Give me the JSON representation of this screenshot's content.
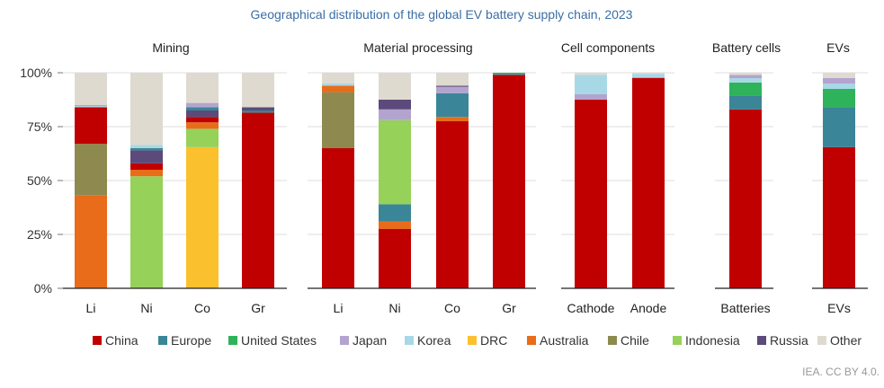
{
  "chart_data": {
    "type": "bar",
    "stacked": true,
    "title": "Geographical distribution of the global EV battery supply chain, 2023",
    "ylim": [
      0,
      100
    ],
    "yticks": [
      "0%",
      "25%",
      "50%",
      "75%",
      "100%"
    ],
    "series": [
      {
        "name": "China",
        "color": "#c00000"
      },
      {
        "name": "Europe",
        "color": "#3a8597"
      },
      {
        "name": "United States",
        "color": "#2eb35a"
      },
      {
        "name": "Japan",
        "color": "#b3a4cf"
      },
      {
        "name": "Korea",
        "color": "#a8d8e6"
      },
      {
        "name": "DRC",
        "color": "#fbc02d"
      },
      {
        "name": "Australia",
        "color": "#e86c1a"
      },
      {
        "name": "Chile",
        "color": "#8e8a4f"
      },
      {
        "name": "Indonesia",
        "color": "#96d15a"
      },
      {
        "name": "Russia",
        "color": "#5b4a7a"
      },
      {
        "name": "Other",
        "color": "#dedad0"
      }
    ],
    "panels": [
      {
        "name": "Mining",
        "bars": [
          {
            "label": "Li",
            "segments": [
              {
                "series": "Australia",
                "value": 43
              },
              {
                "series": "Chile",
                "value": 24
              },
              {
                "series": "China",
                "value": 17
              },
              {
                "series": "Korea",
                "value": 0.5
              },
              {
                "series": "Japan",
                "value": 0.5
              },
              {
                "series": "Other",
                "value": 15
              }
            ]
          },
          {
            "label": "Ni",
            "segments": [
              {
                "series": "Indonesia",
                "value": 52
              },
              {
                "series": "Australia",
                "value": 3
              },
              {
                "series": "China",
                "value": 3
              },
              {
                "series": "Russia",
                "value": 6
              },
              {
                "series": "Europe",
                "value": 1
              },
              {
                "series": "Korea",
                "value": 1.5
              },
              {
                "series": "Other",
                "value": 33.5
              }
            ]
          },
          {
            "label": "Co",
            "segments": [
              {
                "series": "DRC",
                "value": 65.5
              },
              {
                "series": "Indonesia",
                "value": 8.5
              },
              {
                "series": "Australia",
                "value": 3
              },
              {
                "series": "China",
                "value": 2.5
              },
              {
                "series": "Russia",
                "value": 3
              },
              {
                "series": "Europe",
                "value": 1.5
              },
              {
                "series": "Japan",
                "value": 2
              },
              {
                "series": "Other",
                "value": 14
              }
            ]
          },
          {
            "label": "Gr",
            "segments": [
              {
                "series": "China",
                "value": 81.5
              },
              {
                "series": "Europe",
                "value": 1
              },
              {
                "series": "Russia",
                "value": 1.5
              },
              {
                "series": "Other",
                "value": 16
              }
            ]
          }
        ]
      },
      {
        "name": "Material processing",
        "bars": [
          {
            "label": "Li",
            "segments": [
              {
                "series": "China",
                "value": 65
              },
              {
                "series": "Chile",
                "value": 26
              },
              {
                "series": "Australia",
                "value": 3
              },
              {
                "series": "Korea",
                "value": 1
              },
              {
                "series": "Other",
                "value": 5
              }
            ]
          },
          {
            "label": "Ni",
            "segments": [
              {
                "series": "China",
                "value": 27.5
              },
              {
                "series": "Australia",
                "value": 3.5
              },
              {
                "series": "Europe",
                "value": 8
              },
              {
                "series": "Indonesia",
                "value": 39
              },
              {
                "series": "Japan",
                "value": 5
              },
              {
                "series": "Russia",
                "value": 4.5
              },
              {
                "series": "Other",
                "value": 12.5
              }
            ]
          },
          {
            "label": "Co",
            "segments": [
              {
                "series": "China",
                "value": 77.5
              },
              {
                "series": "Australia",
                "value": 2
              },
              {
                "series": "Europe",
                "value": 11
              },
              {
                "series": "Japan",
                "value": 3
              },
              {
                "series": "Russia",
                "value": 0.5
              },
              {
                "series": "Other",
                "value": 6
              }
            ]
          },
          {
            "label": "Gr",
            "segments": [
              {
                "series": "China",
                "value": 99
              },
              {
                "series": "Europe",
                "value": 0.5
              },
              {
                "series": "United States",
                "value": 0.5
              }
            ]
          }
        ]
      },
      {
        "name": "Cell components",
        "bars": [
          {
            "label": "Cathode",
            "segments": [
              {
                "series": "China",
                "value": 87.5
              },
              {
                "series": "Japan",
                "value": 2.5
              },
              {
                "series": "Korea",
                "value": 9
              },
              {
                "series": "Other",
                "value": 1
              }
            ]
          },
          {
            "label": "Anode",
            "segments": [
              {
                "series": "China",
                "value": 97.5
              },
              {
                "series": "Japan",
                "value": 0.5
              },
              {
                "series": "Korea",
                "value": 1.5
              },
              {
                "series": "Other",
                "value": 0.5
              }
            ]
          }
        ]
      },
      {
        "name": "Battery cells",
        "bars": [
          {
            "label": "Batteries",
            "segments": [
              {
                "series": "China",
                "value": 83
              },
              {
                "series": "Europe",
                "value": 6.5
              },
              {
                "series": "United States",
                "value": 6
              },
              {
                "series": "Korea",
                "value": 2
              },
              {
                "series": "Japan",
                "value": 1.5
              },
              {
                "series": "Other",
                "value": 1
              }
            ]
          }
        ]
      },
      {
        "name": "EVs",
        "bars": [
          {
            "label": "EVs",
            "segments": [
              {
                "series": "China",
                "value": 65.5
              },
              {
                "series": "Europe",
                "value": 18.5
              },
              {
                "series": "United States",
                "value": 8.5
              },
              {
                "series": "Korea",
                "value": 2.5
              },
              {
                "series": "Japan",
                "value": 2.5
              },
              {
                "series": "Other",
                "value": 2.5
              }
            ]
          }
        ]
      }
    ]
  },
  "credit": "IEA. CC BY 4.0."
}
